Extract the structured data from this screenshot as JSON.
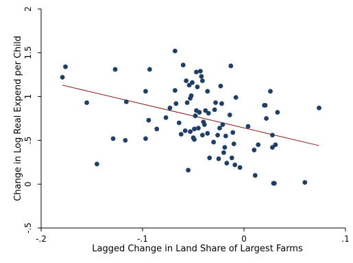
{
  "chart_data": {
    "type": "scatter",
    "title": "",
    "xlabel": "Lagged Change in Land Share of Largest Farms",
    "ylabel": "Change in Log Real Expend per Child",
    "xlim": [
      -0.2,
      0.1
    ],
    "ylim": [
      -0.5,
      2.0
    ],
    "xticks": [
      {
        "value": -0.2,
        "label": "-.2"
      },
      {
        "value": -0.1,
        "label": "-.1"
      },
      {
        "value": 0.0,
        "label": "0"
      },
      {
        "value": 0.1,
        "label": ".1"
      }
    ],
    "yticks": [
      {
        "value": -0.5,
        "label": "-.5"
      },
      {
        "value": 0.0,
        "label": "0"
      },
      {
        "value": 0.5,
        "label": ".5"
      },
      {
        "value": 1.0,
        "label": "1"
      },
      {
        "value": 1.5,
        "label": "1.5"
      },
      {
        "value": 2.0,
        "label": "2"
      }
    ],
    "grid": false,
    "marker_color": "#1f3f66",
    "fit_color": "#8b1a1a",
    "points": [
      {
        "x": -0.179,
        "y": 1.22
      },
      {
        "x": -0.176,
        "y": 1.34
      },
      {
        "x": -0.155,
        "y": 0.93
      },
      {
        "x": -0.145,
        "y": 0.23
      },
      {
        "x": -0.129,
        "y": 0.52
      },
      {
        "x": -0.127,
        "y": 1.31
      },
      {
        "x": -0.117,
        "y": 0.5
      },
      {
        "x": -0.116,
        "y": 0.94
      },
      {
        "x": -0.097,
        "y": 1.06
      },
      {
        "x": -0.097,
        "y": 0.52
      },
      {
        "x": -0.094,
        "y": 0.73
      },
      {
        "x": -0.093,
        "y": 1.31
      },
      {
        "x": -0.086,
        "y": 0.63
      },
      {
        "x": -0.077,
        "y": 0.76
      },
      {
        "x": -0.073,
        "y": 0.87
      },
      {
        "x": -0.068,
        "y": 1.52
      },
      {
        "x": -0.068,
        "y": 1.07
      },
      {
        "x": -0.067,
        "y": 0.92
      },
      {
        "x": -0.064,
        "y": 0.7
      },
      {
        "x": -0.062,
        "y": 0.57
      },
      {
        "x": -0.06,
        "y": 1.36
      },
      {
        "x": -0.058,
        "y": 0.61
      },
      {
        "x": -0.057,
        "y": 1.18
      },
      {
        "x": -0.056,
        "y": 0.93
      },
      {
        "x": -0.055,
        "y": 0.16
      },
      {
        "x": -0.054,
        "y": 1.13
      },
      {
        "x": -0.053,
        "y": 0.6
      },
      {
        "x": -0.053,
        "y": 0.98
      },
      {
        "x": -0.052,
        "y": 1.01
      },
      {
        "x": -0.051,
        "y": 1.16
      },
      {
        "x": -0.05,
        "y": 0.53
      },
      {
        "x": -0.049,
        "y": 0.63
      },
      {
        "x": -0.049,
        "y": 0.51
      },
      {
        "x": -0.048,
        "y": 0.78
      },
      {
        "x": -0.047,
        "y": 0.84
      },
      {
        "x": -0.047,
        "y": 1.28
      },
      {
        "x": -0.046,
        "y": 1.11
      },
      {
        "x": -0.045,
        "y": 0.64
      },
      {
        "x": -0.044,
        "y": 0.82
      },
      {
        "x": -0.043,
        "y": 1.29
      },
      {
        "x": -0.042,
        "y": 1.23
      },
      {
        "x": -0.041,
        "y": 1.18
      },
      {
        "x": -0.041,
        "y": 0.56
      },
      {
        "x": -0.04,
        "y": 0.71
      },
      {
        "x": -0.039,
        "y": 0.68
      },
      {
        "x": -0.038,
        "y": 0.84
      },
      {
        "x": -0.036,
        "y": 0.58
      },
      {
        "x": -0.036,
        "y": 1.06
      },
      {
        "x": -0.035,
        "y": 0.81
      },
      {
        "x": -0.034,
        "y": 0.3
      },
      {
        "x": -0.03,
        "y": 0.48
      },
      {
        "x": -0.029,
        "y": 0.85
      },
      {
        "x": -0.028,
        "y": 0.93
      },
      {
        "x": -0.026,
        "y": 0.56
      },
      {
        "x": -0.025,
        "y": 0.29
      },
      {
        "x": -0.024,
        "y": 0.64
      },
      {
        "x": -0.023,
        "y": 1.12
      },
      {
        "x": -0.022,
        "y": 0.92
      },
      {
        "x": -0.021,
        "y": 0.68
      },
      {
        "x": -0.02,
        "y": 0.36
      },
      {
        "x": -0.019,
        "y": 0.42
      },
      {
        "x": -0.018,
        "y": 0.55
      },
      {
        "x": -0.017,
        "y": 0.24
      },
      {
        "x": -0.014,
        "y": 0.79
      },
      {
        "x": -0.013,
        "y": 1.35
      },
      {
        "x": -0.012,
        "y": 0.3
      },
      {
        "x": -0.011,
        "y": 0.59
      },
      {
        "x": -0.01,
        "y": 0.46
      },
      {
        "x": -0.009,
        "y": 0.22
      },
      {
        "x": -0.008,
        "y": 0.99
      },
      {
        "x": -0.004,
        "y": 0.19
      },
      {
        "x": 0.004,
        "y": 0.66
      },
      {
        "x": 0.01,
        "y": 0.39
      },
      {
        "x": 0.011,
        "y": 0.1
      },
      {
        "x": 0.014,
        "y": 0.45
      },
      {
        "x": 0.02,
        "y": 0.9
      },
      {
        "x": 0.021,
        "y": 0.9
      },
      {
        "x": 0.022,
        "y": 0.75
      },
      {
        "x": 0.026,
        "y": 1.06
      },
      {
        "x": 0.028,
        "y": 0.56
      },
      {
        "x": 0.028,
        "y": 0.42
      },
      {
        "x": 0.029,
        "y": 0.01
      },
      {
        "x": 0.03,
        "y": 0.01
      },
      {
        "x": 0.031,
        "y": 0.45
      },
      {
        "x": 0.033,
        "y": 0.82
      },
      {
        "x": 0.06,
        "y": 0.02
      },
      {
        "x": 0.074,
        "y": 0.87
      }
    ],
    "fit_line": {
      "x": [
        -0.179,
        0.074
      ],
      "y": [
        1.13,
        0.44
      ]
    }
  }
}
